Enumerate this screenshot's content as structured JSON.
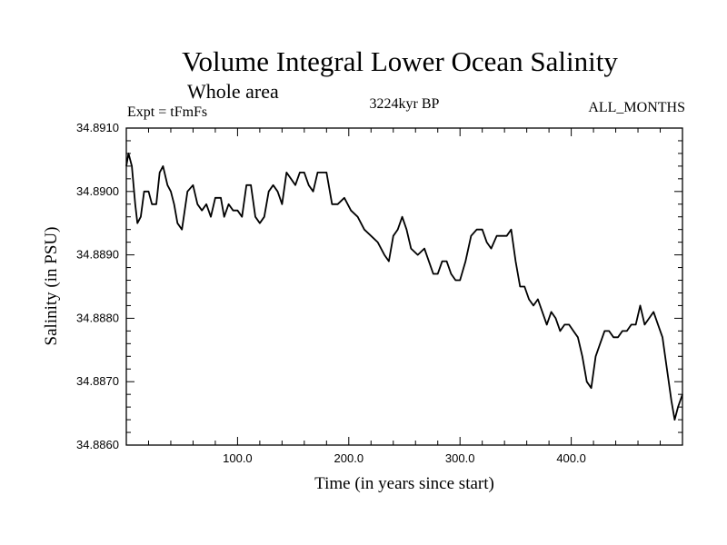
{
  "chart_data": {
    "type": "line",
    "title": "Volume Integral Lower Ocean Salinity",
    "subtitle": "Whole area",
    "expt_label": "Expt = tFmFs",
    "period_label": "3224kyr BP",
    "months_label": "ALL_MONTHS",
    "xlabel": "Time (in years since start)",
    "ylabel": "Salinity (in PSU)",
    "xlim": [
      0,
      500
    ],
    "ylim": [
      34.886,
      34.891
    ],
    "x_ticks": [
      100,
      200,
      300,
      400
    ],
    "x_tick_labels": [
      "100.0",
      "200.0",
      "300.0",
      "400.0"
    ],
    "y_ticks": [
      34.886,
      34.887,
      34.888,
      34.889,
      34.89,
      34.891
    ],
    "y_tick_labels": [
      "34.8860",
      "34.8870",
      "34.8880",
      "34.8890",
      "34.8900",
      "34.8910"
    ],
    "grid": false,
    "series": [
      {
        "name": "salinity",
        "x": [
          0,
          2,
          5,
          8,
          10,
          13,
          16,
          20,
          23,
          27,
          30,
          33,
          37,
          40,
          43,
          46,
          50,
          55,
          60,
          64,
          68,
          72,
          76,
          80,
          85,
          88,
          92,
          96,
          100,
          104,
          108,
          112,
          116,
          120,
          124,
          128,
          132,
          136,
          140,
          144,
          148,
          152,
          156,
          160,
          164,
          168,
          172,
          176,
          180,
          185,
          190,
          196,
          202,
          208,
          214,
          220,
          226,
          232,
          236,
          240,
          244,
          248,
          252,
          256,
          262,
          268,
          272,
          276,
          280,
          284,
          288,
          292,
          296,
          300,
          305,
          310,
          315,
          320,
          324,
          328,
          333,
          338,
          342,
          346,
          350,
          354,
          358,
          362,
          366,
          370,
          374,
          378,
          382,
          386,
          390,
          394,
          398,
          402,
          406,
          410,
          414,
          418,
          422,
          426,
          430,
          434,
          438,
          442,
          446,
          450,
          454,
          458,
          462,
          466,
          470,
          474,
          478,
          482,
          486,
          490,
          493,
          496,
          500
        ],
        "values": [
          34.8904,
          34.8906,
          34.8904,
          34.8898,
          34.8895,
          34.8896,
          34.89,
          34.89,
          34.8898,
          34.8898,
          34.8903,
          34.8904,
          34.8901,
          34.89,
          34.8898,
          34.8895,
          34.8894,
          34.89,
          34.8901,
          34.8898,
          34.8897,
          34.8898,
          34.8896,
          34.8899,
          34.8899,
          34.8896,
          34.8898,
          34.8897,
          34.8897,
          34.8896,
          34.8901,
          34.8901,
          34.8896,
          34.8895,
          34.8896,
          34.89,
          34.8901,
          34.89,
          34.8898,
          34.8903,
          34.8902,
          34.8901,
          34.8903,
          34.8903,
          34.8901,
          34.89,
          34.8903,
          34.8903,
          34.8903,
          34.8898,
          34.8898,
          34.8899,
          34.8897,
          34.8896,
          34.8894,
          34.8893,
          34.8892,
          34.889,
          34.8889,
          34.8893,
          34.8894,
          34.8896,
          34.8894,
          34.8891,
          34.889,
          34.8891,
          34.8889,
          34.8887,
          34.8887,
          34.8889,
          34.8889,
          34.8887,
          34.8886,
          34.8886,
          34.8889,
          34.8893,
          34.8894,
          34.8894,
          34.8892,
          34.8891,
          34.8893,
          34.8893,
          34.8893,
          34.8894,
          34.8889,
          34.8885,
          34.8885,
          34.8883,
          34.8882,
          34.8883,
          34.8881,
          34.8879,
          34.8881,
          34.888,
          34.8878,
          34.8879,
          34.8879,
          34.8878,
          34.8877,
          34.8874,
          34.887,
          34.8869,
          34.8874,
          34.8876,
          34.8878,
          34.8878,
          34.8877,
          34.8877,
          34.8878,
          34.8878,
          34.8879,
          34.8879,
          34.8882,
          34.8879,
          34.888,
          34.8881,
          34.8879,
          34.8877,
          34.8872,
          34.8867,
          34.8864,
          34.8866,
          34.8868
        ]
      }
    ]
  }
}
